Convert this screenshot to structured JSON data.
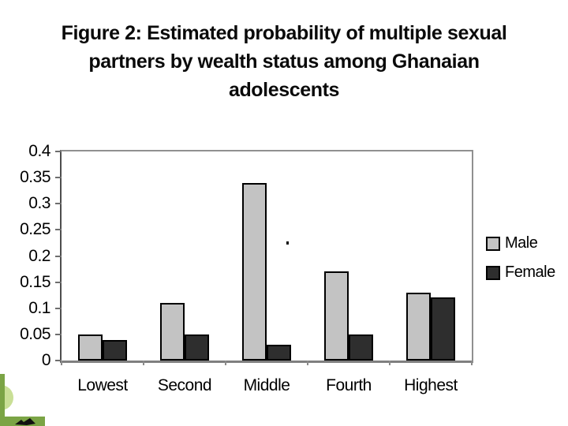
{
  "slide": {
    "title_lines": [
      "Figure 2: Estimated probability of multiple sexual",
      "partners by wealth status among Ghanaian",
      "adolescents"
    ],
    "decor": {
      "corner_green": "#7ba445",
      "corner_light_green": "#c9df96",
      "bird_color": "#111111"
    }
  },
  "chart_data": {
    "type": "bar",
    "title": "Figure 2: Estimated probability of multiple sexual partners by wealth status among Ghanaian adolescents",
    "categories": [
      "Lowest",
      "Second",
      "Middle",
      "Fourth",
      "Highest"
    ],
    "series": [
      {
        "name": "Male",
        "color": "#c3c3c3",
        "values": [
          0.05,
          0.11,
          0.34,
          0.17,
          0.13
        ]
      },
      {
        "name": "Female",
        "color": "#2e2e2e",
        "values": [
          0.04,
          0.05,
          0.03,
          0.05,
          0.12
        ]
      }
    ],
    "xlabel": "",
    "ylabel": "",
    "ylim": [
      0,
      0.4
    ],
    "yticks": [
      0,
      0.05,
      0.1,
      0.15,
      0.2,
      0.25,
      0.3,
      0.35,
      0.4
    ],
    "ytick_labels": [
      "0",
      "0.05",
      "0.1",
      "0.15",
      "0.2",
      "0.25",
      "0.3",
      "0.35",
      "0.4"
    ],
    "grid": false,
    "legend_position": "right",
    "bar_outline_color": "#000000",
    "stray_mark": "."
  }
}
